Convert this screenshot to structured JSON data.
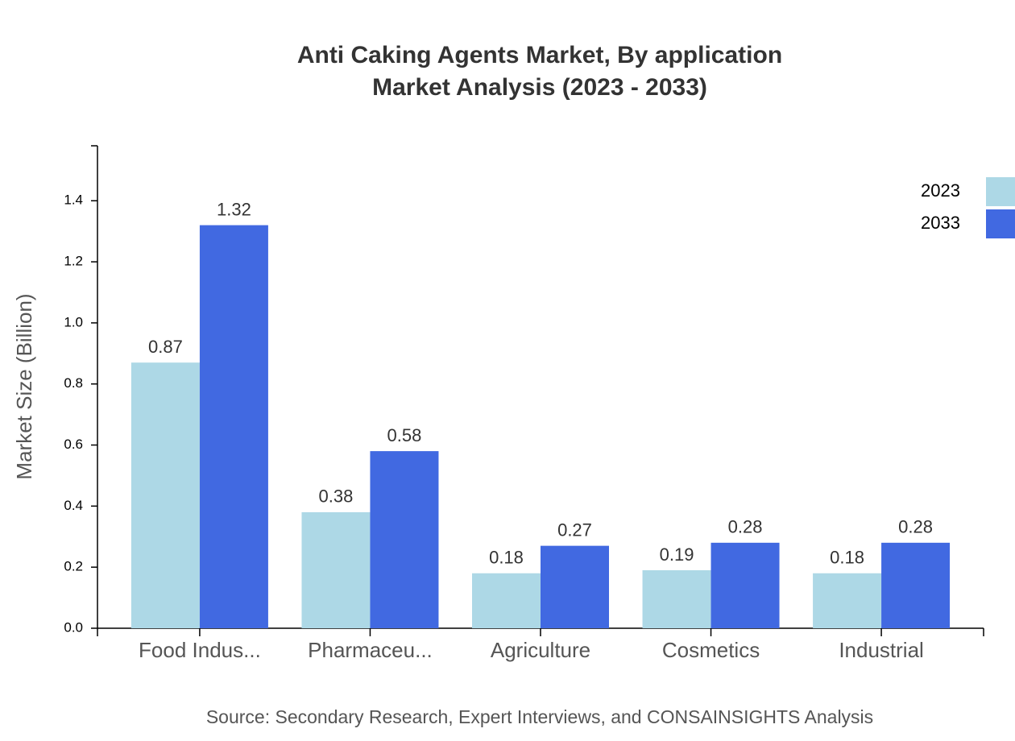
{
  "chart_data": {
    "type": "bar",
    "title": "Anti Caking Agents Market, By application",
    "subtitle": "Market Analysis (2023 - 2033)",
    "y_label": "Market Size (Billion)",
    "source": "Source: Secondary Research, Expert Interviews, and CONSAINSIGHTS Analysis",
    "categories": [
      "Food Indus...",
      "Pharmaceu...",
      "Agriculture",
      "Cosmetics",
      "Industrial"
    ],
    "series": [
      {
        "name": "2023",
        "color": "#add8e6",
        "values": [
          0.87,
          0.38,
          0.18,
          0.19,
          0.18
        ]
      },
      {
        "name": "2033",
        "color": "#4169e1",
        "values": [
          1.32,
          0.58,
          0.27,
          0.28,
          0.28
        ]
      }
    ],
    "ylim": [
      0,
      1.58
    ],
    "yticks": [
      {
        "value": 0,
        "label": "0.0"
      },
      0.2,
      0.4,
      0.6,
      0.8,
      {
        "value": 1,
        "label": "1.0"
      },
      1.2,
      1.4
    ],
    "legend": "top-right"
  }
}
